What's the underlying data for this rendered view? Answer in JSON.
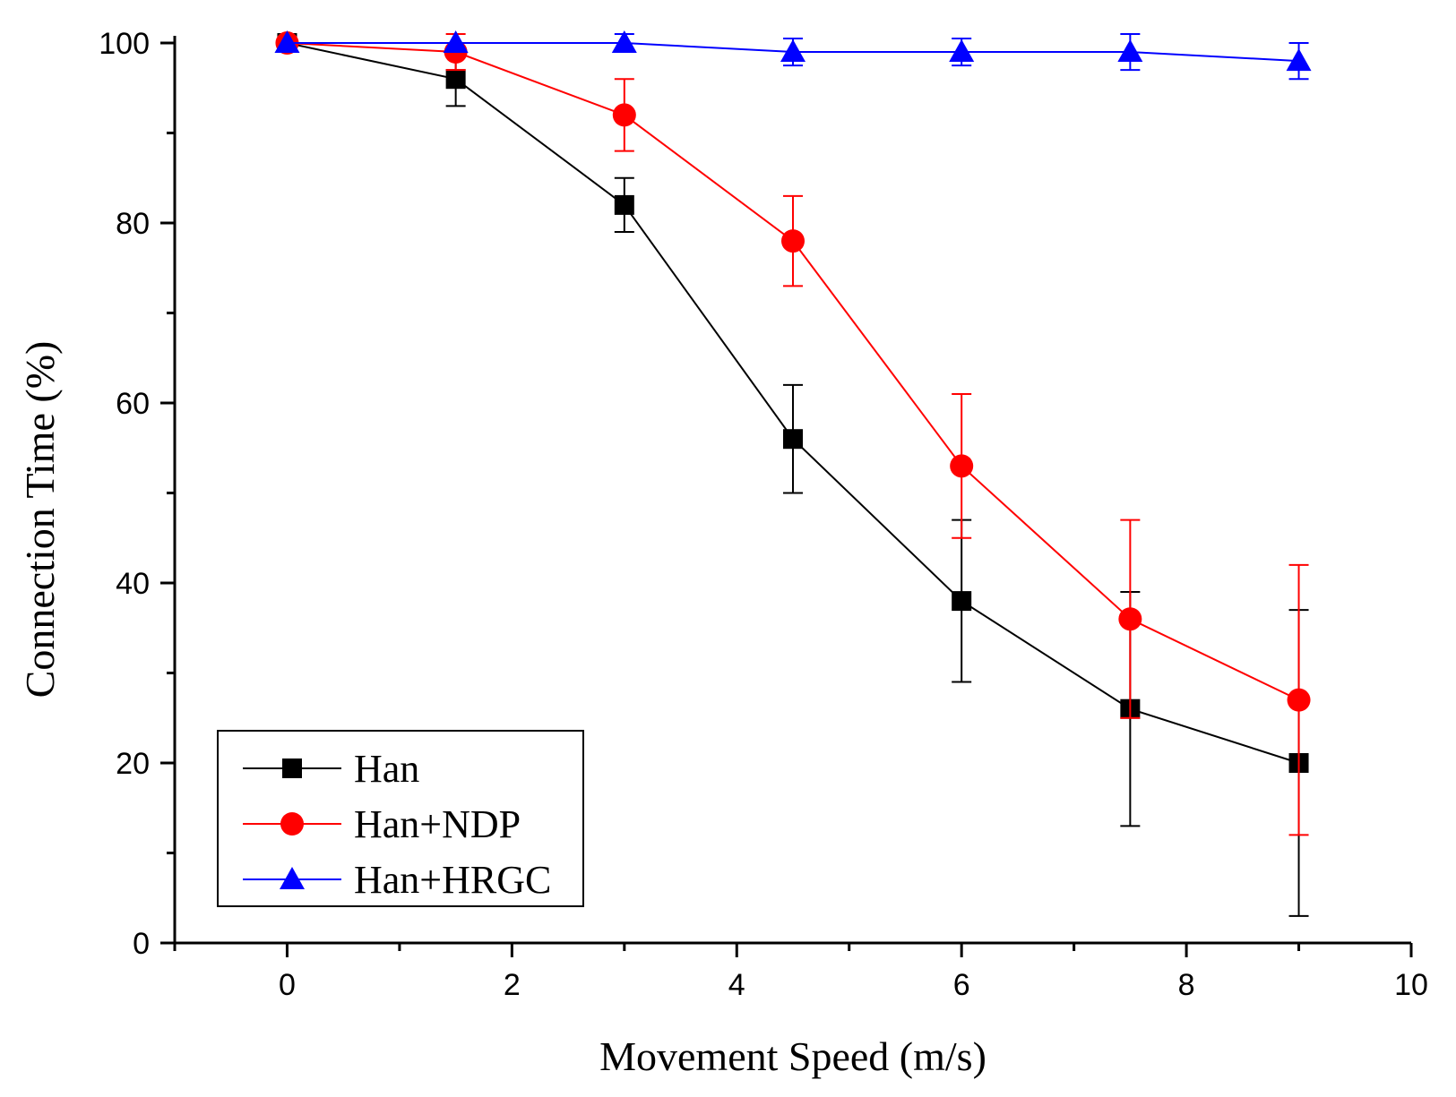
{
  "chart_data": {
    "type": "line",
    "title": "",
    "xlabel": "Movement Speed (m/s)",
    "ylabel": "Connection Time (%)",
    "xlim": [
      -1,
      10
    ],
    "ylim": [
      0,
      100
    ],
    "x_ticks": [
      0,
      2,
      4,
      6,
      8,
      10
    ],
    "x_tick_labels": [
      "0",
      "2",
      "4",
      "6",
      "8",
      "10"
    ],
    "y_ticks": [
      0,
      20,
      40,
      60,
      80,
      100
    ],
    "y_tick_labels": [
      "0",
      "20",
      "40",
      "60",
      "80",
      "100"
    ],
    "grid": false,
    "legend_position": "bottom-left",
    "x": [
      0,
      1.5,
      3,
      4.5,
      6,
      7.5,
      9
    ],
    "series": [
      {
        "name": "Han",
        "color": "#000000",
        "marker": "square",
        "values": [
          100,
          96,
          82,
          56,
          38,
          26,
          20
        ],
        "error": [
          0,
          3,
          3,
          6,
          9,
          13,
          17
        ]
      },
      {
        "name": "Han+NDP",
        "color": "#ff0000",
        "marker": "circle",
        "values": [
          100,
          99,
          92,
          78,
          53,
          36,
          27
        ],
        "error": [
          0,
          2,
          4,
          5,
          8,
          11,
          15
        ]
      },
      {
        "name": "Han+HRGC",
        "color": "#0000ff",
        "marker": "triangle",
        "values": [
          100,
          100,
          100,
          99,
          99,
          99,
          98
        ],
        "error": [
          0,
          0,
          1,
          1.5,
          1.5,
          2,
          2
        ]
      }
    ]
  }
}
